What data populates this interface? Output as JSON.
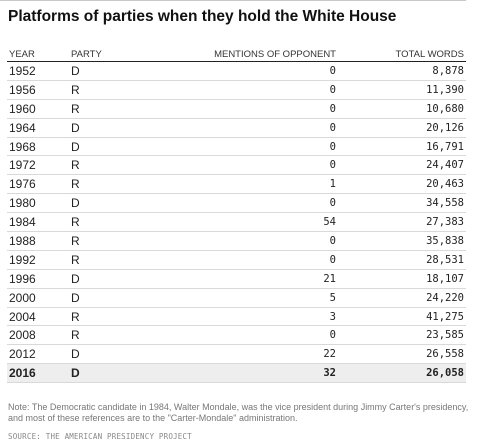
{
  "title": "Platforms of parties when they hold the White House",
  "columns": {
    "year": "YEAR",
    "party": "PARTY",
    "mentions": "MENTIONS OF OPPONENT",
    "words": "TOTAL WORDS"
  },
  "chart_data": {
    "type": "table",
    "title": "Platforms of parties when they hold the White House",
    "columns": [
      "YEAR",
      "PARTY",
      "MENTIONS OF OPPONENT",
      "TOTAL WORDS"
    ],
    "highlight_row": "2016",
    "rows": [
      {
        "year": "1952",
        "party": "D",
        "mentions": "0",
        "words": "8,878"
      },
      {
        "year": "1956",
        "party": "R",
        "mentions": "0",
        "words": "11,390"
      },
      {
        "year": "1960",
        "party": "R",
        "mentions": "0",
        "words": "10,680"
      },
      {
        "year": "1964",
        "party": "D",
        "mentions": "0",
        "words": "20,126"
      },
      {
        "year": "1968",
        "party": "D",
        "mentions": "0",
        "words": "16,791"
      },
      {
        "year": "1972",
        "party": "R",
        "mentions": "0",
        "words": "24,407"
      },
      {
        "year": "1976",
        "party": "R",
        "mentions": "1",
        "words": "20,463"
      },
      {
        "year": "1980",
        "party": "D",
        "mentions": "0",
        "words": "34,558"
      },
      {
        "year": "1984",
        "party": "R",
        "mentions": "54",
        "words": "27,383"
      },
      {
        "year": "1988",
        "party": "R",
        "mentions": "0",
        "words": "35,838"
      },
      {
        "year": "1992",
        "party": "R",
        "mentions": "0",
        "words": "28,531"
      },
      {
        "year": "1996",
        "party": "D",
        "mentions": "21",
        "words": "18,107"
      },
      {
        "year": "2000",
        "party": "D",
        "mentions": "5",
        "words": "24,220"
      },
      {
        "year": "2004",
        "party": "R",
        "mentions": "3",
        "words": "41,275"
      },
      {
        "year": "2008",
        "party": "R",
        "mentions": "0",
        "words": "23,585"
      },
      {
        "year": "2012",
        "party": "D",
        "mentions": "22",
        "words": "26,558"
      },
      {
        "year": "2016",
        "party": "D",
        "mentions": "32",
        "words": "26,058"
      }
    ]
  },
  "note": "Note: The Democratic candidate in 1984, Walter Mondale, was the vice president during Jimmy Carter's presidency, and most of these references are to the \"Carter-Mondale\" administration.",
  "source": "SOURCE: THE AMERICAN PRESIDENCY PROJECT"
}
